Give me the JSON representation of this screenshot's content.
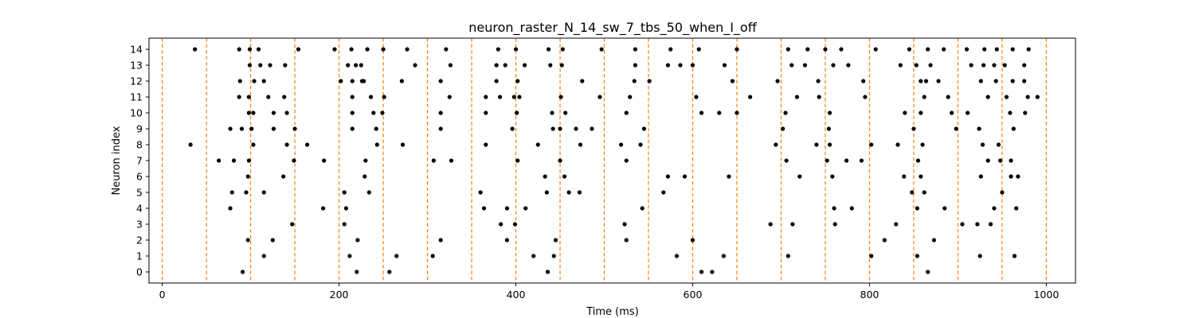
{
  "chart_data": {
    "type": "scatter",
    "title": "neuron_raster_N_14_sw_7_tbs_50_when_I_off",
    "xlabel": "Time (ms)",
    "ylabel": "Neuron index",
    "xlim": [
      -15,
      1033
    ],
    "ylim": [
      -0.7,
      14.7
    ],
    "xticks": [
      0,
      200,
      400,
      600,
      800,
      1000
    ],
    "yticks": [
      0,
      1,
      2,
      3,
      4,
      5,
      6,
      7,
      8,
      9,
      10,
      11,
      12,
      13,
      14
    ],
    "grid": false,
    "marker_color": "#000000",
    "vertical_lines": {
      "color": "#ff7f0e",
      "style": "dashed",
      "x": [
        0,
        50,
        100,
        150,
        200,
        250,
        300,
        350,
        400,
        450,
        500,
        550,
        600,
        650,
        700,
        750,
        800,
        850,
        900,
        950,
        1000
      ]
    },
    "series": [
      {
        "neuron": 14,
        "times": [
          37,
          87,
          99,
          109,
          154,
          195,
          214,
          232,
          250,
          277,
          321,
          380,
          400,
          437,
          453,
          497,
          535,
          575,
          607,
          650,
          708,
          730,
          750,
          768,
          807,
          845,
          866,
          884,
          910,
          930,
          944,
          962,
          980
        ]
      },
      {
        "neuron": 13,
        "times": [
          99,
          111,
          122,
          139,
          210,
          219,
          225,
          286,
          326,
          378,
          388,
          410,
          439,
          452,
          535,
          572,
          586,
          600,
          636,
          712,
          727,
          759,
          776,
          835,
          853,
          869,
          915,
          929,
          941,
          953,
          975
        ]
      },
      {
        "neuron": 12,
        "times": [
          88,
          104,
          115,
          202,
          215,
          226,
          228,
          271,
          315,
          378,
          402,
          475,
          534,
          551,
          645,
          696,
          742,
          793,
          858,
          864,
          878,
          926,
          943,
          962,
          975
        ]
      },
      {
        "neuron": 11,
        "times": [
          87,
          98,
          120,
          138,
          215,
          236,
          251,
          325,
          366,
          382,
          398,
          404,
          451,
          495,
          529,
          604,
          665,
          718,
          743,
          795,
          862,
          889,
          934,
          955,
          979,
          990
        ]
      },
      {
        "neuron": 10,
        "times": [
          98,
          103,
          126,
          141,
          215,
          239,
          249,
          315,
          366,
          401,
          441,
          456,
          525,
          610,
          630,
          650,
          705,
          755,
          840,
          858,
          893,
          911,
          959,
          976
        ]
      },
      {
        "neuron": 9,
        "times": [
          77,
          90,
          101,
          126,
          150,
          215,
          242,
          315,
          396,
          442,
          450,
          468,
          486,
          545,
          702,
          754,
          850,
          898,
          924,
          963
        ]
      },
      {
        "neuron": 8,
        "times": [
          32,
          103,
          141,
          164,
          243,
          272,
          366,
          425,
          473,
          519,
          541,
          694,
          740,
          755,
          802,
          832,
          860,
          928,
          946
        ]
      },
      {
        "neuron": 7,
        "times": [
          64,
          81,
          98,
          149,
          183,
          230,
          307,
          327,
          402,
          450,
          525,
          706,
          752,
          774,
          791,
          855,
          934,
          948,
          960
        ]
      },
      {
        "neuron": 6,
        "times": [
          97,
          137,
          229,
          433,
          455,
          572,
          591,
          641,
          721,
          758,
          839,
          858,
          926,
          960,
          968
        ]
      },
      {
        "neuron": 5,
        "times": [
          79,
          95,
          115,
          206,
          234,
          360,
          435,
          460,
          472,
          567,
          848,
          862,
          950
        ]
      },
      {
        "neuron": 4,
        "times": [
          77,
          182,
          208,
          364,
          390,
          411,
          543,
          760,
          780,
          854,
          885,
          941,
          966
        ]
      },
      {
        "neuron": 3,
        "times": [
          147,
          206,
          383,
          399,
          523,
          688,
          713,
          761,
          830,
          905,
          922,
          937
        ]
      },
      {
        "neuron": 2,
        "times": [
          97,
          125,
          221,
          315,
          390,
          445,
          525,
          600,
          817,
          873
        ]
      },
      {
        "neuron": 1,
        "times": [
          115,
          212,
          265,
          306,
          420,
          443,
          582,
          635,
          708,
          802,
          854,
          925,
          964
        ]
      },
      {
        "neuron": 0,
        "times": [
          91,
          220,
          257,
          436,
          610,
          622,
          866
        ]
      }
    ]
  }
}
